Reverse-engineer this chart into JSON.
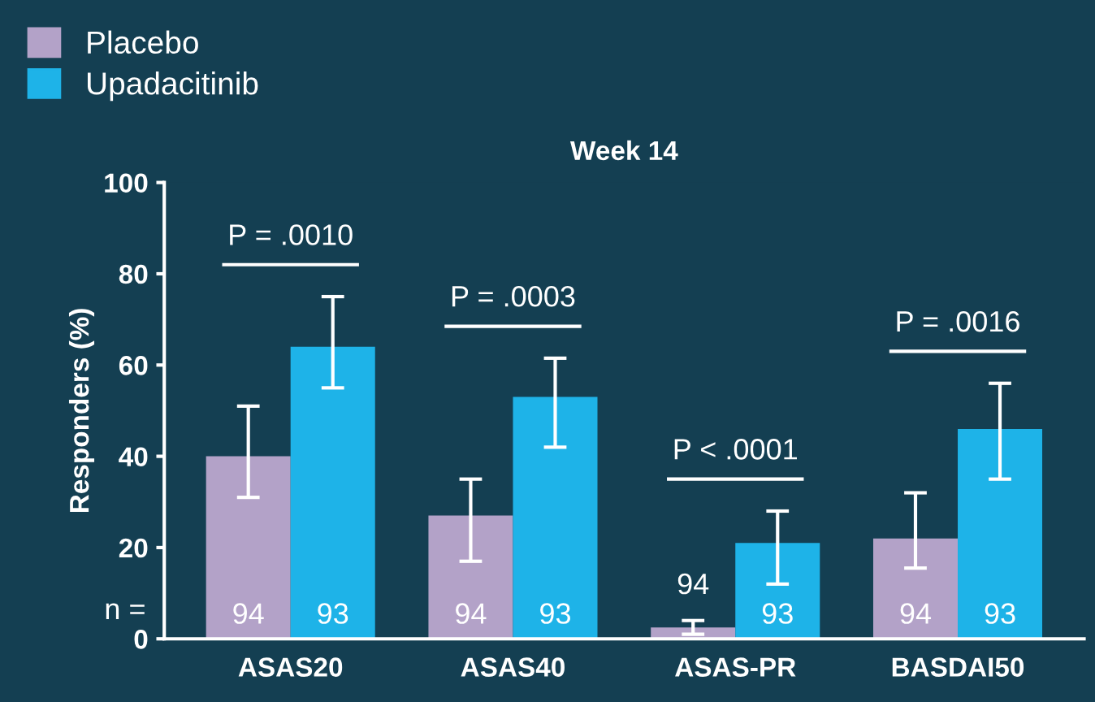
{
  "chart_data": {
    "type": "bar",
    "title": "Week 14",
    "ylabel": "Responders (%)",
    "categories": [
      "ASAS20",
      "ASAS40",
      "ASAS-PR",
      "BASDAI50"
    ],
    "series": [
      {
        "name": "Placebo",
        "color": "#b3a2c8",
        "values": [
          40,
          27,
          2.5,
          22
        ],
        "errors": [
          [
            31,
            51
          ],
          [
            17,
            35
          ],
          [
            1,
            4
          ],
          [
            15.5,
            32
          ]
        ]
      },
      {
        "name": "Upadacitinib",
        "color": "#1eb3e8",
        "values": [
          64,
          53,
          21,
          46
        ],
        "errors": [
          [
            55,
            75
          ],
          [
            42,
            61.5
          ],
          [
            12,
            28
          ],
          [
            35,
            56
          ]
        ]
      }
    ],
    "ylim": [
      0,
      100
    ],
    "yticks": [
      0,
      20,
      40,
      60,
      80,
      100
    ],
    "grid": false,
    "legend": "top left",
    "annotations": [
      "P = .0010",
      "P = .0003",
      "P < .0001",
      "P = .0016",
      "n =",
      "94",
      "94",
      "94",
      "94",
      "93",
      "93",
      "93",
      "93"
    ]
  }
}
